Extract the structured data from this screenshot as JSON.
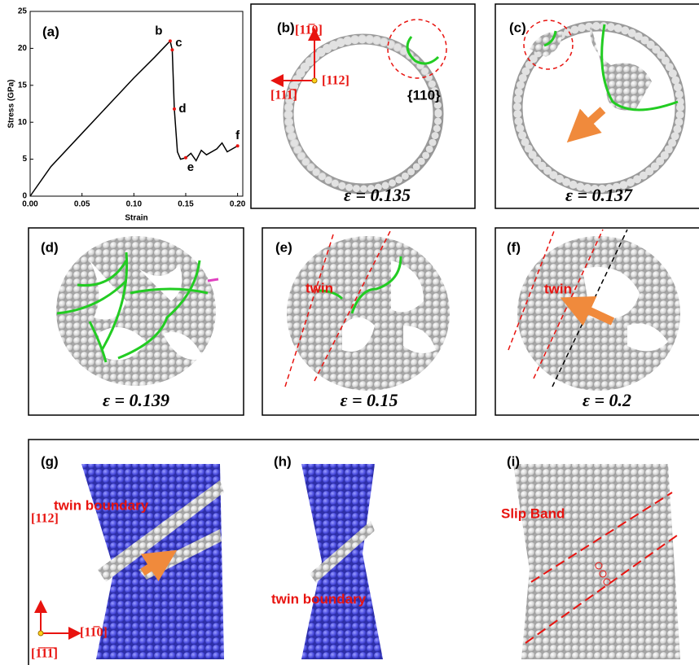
{
  "chart_data": {
    "type": "line",
    "label": "(a)",
    "x_label": "Strain",
    "y_label": "Stress (GPa)",
    "x": [
      0,
      0.02,
      0.05,
      0.08,
      0.1,
      0.12,
      0.135,
      0.137,
      0.139,
      0.142,
      0.145,
      0.15,
      0.155,
      0.16,
      0.165,
      0.17,
      0.18,
      0.185,
      0.19,
      0.195,
      0.2
    ],
    "values": [
      0,
      4,
      8.5,
      13,
      16,
      18.8,
      21,
      19.8,
      11.8,
      6,
      5,
      5.2,
      5.8,
      4.8,
      6.2,
      5.6,
      6.4,
      7.2,
      6,
      6.4,
      6.8
    ],
    "color": "#000000",
    "marker_color": "#e8130f",
    "xlim": [
      0,
      0.205
    ],
    "ylim": [
      0,
      25
    ],
    "xticks": [
      {
        "value": 0,
        "label": "0.00"
      },
      {
        "value": 0.05,
        "label": "0.05"
      },
      {
        "value": 0.1,
        "label": "0.10"
      },
      {
        "value": 0.15,
        "label": "0.15"
      },
      {
        "value": 0.2,
        "label": "0.20"
      }
    ],
    "yticks": [
      0,
      5,
      10,
      15,
      20,
      25
    ],
    "annotations": [
      {
        "label": "b",
        "x": 0.135,
        "y": 21
      },
      {
        "label": "c",
        "x": 0.137,
        "y": 19.8
      },
      {
        "label": "d",
        "x": 0.139,
        "y": 11.8
      },
      {
        "label": "e",
        "x": 0.15,
        "y": 5.2
      },
      {
        "label": "f",
        "x": 0.2,
        "y": 6.8
      }
    ]
  },
  "panels": [
    {
      "label": "(b)",
      "strain": "ε = 0.135",
      "texts": [
        "{110}",
        "[11̅0]",
        "[112]",
        "[111̅]"
      ]
    },
    {
      "label": "(c)",
      "strain": "ε = 0.137",
      "texts": []
    },
    {
      "label": "(d)",
      "strain": "ε = 0.139",
      "texts": []
    },
    {
      "label": "(e)",
      "strain": "ε = 0.15",
      "texts": [
        "twin"
      ]
    },
    {
      "label": "(f)",
      "strain": "ε = 0.2",
      "texts": [
        "twin"
      ]
    },
    {
      "label": "(g)",
      "texts": [
        "twin boundary",
        "[112]",
        "[11̅0]",
        "[1̅1̅1̅]"
      ]
    },
    {
      "label": "(h)",
      "texts": [
        "twin boundary"
      ]
    },
    {
      "label": "(i)",
      "texts": [
        "Slip Band"
      ]
    }
  ]
}
